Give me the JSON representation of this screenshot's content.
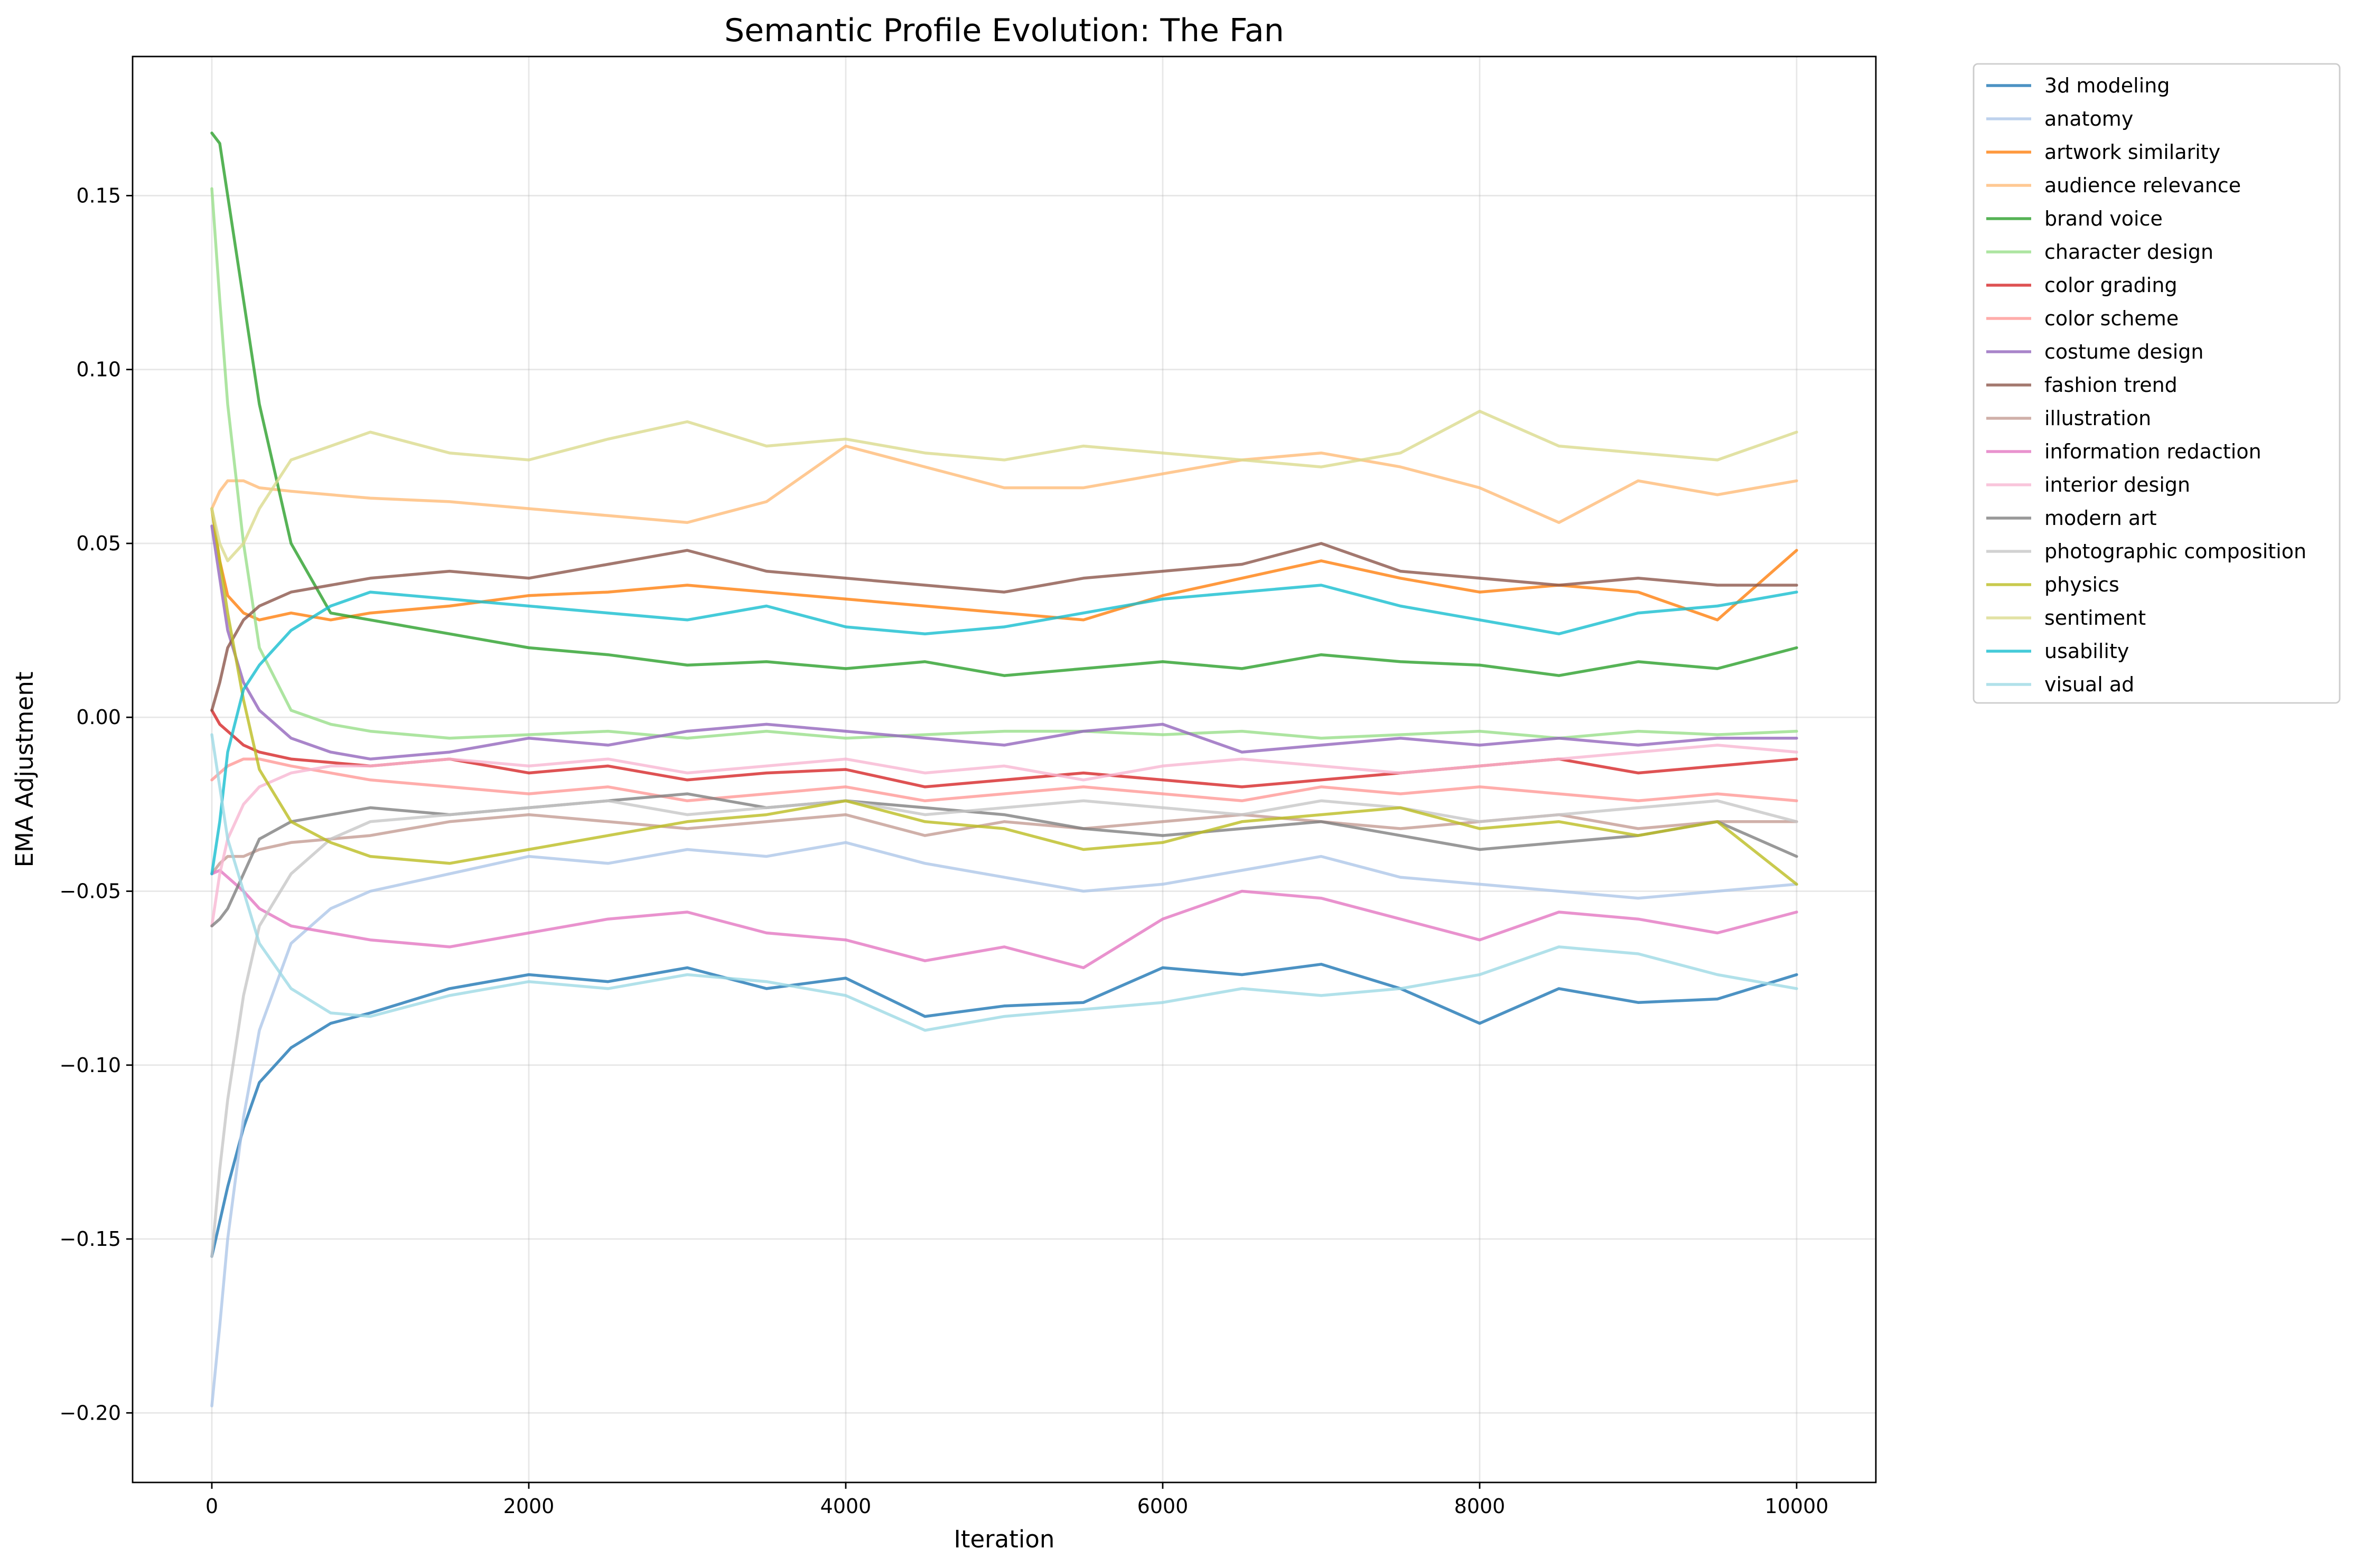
{
  "chart_data": {
    "type": "line",
    "title": "Semantic Profile Evolution: The Fan",
    "xlabel": "Iteration",
    "ylabel": "EMA Adjustment",
    "xlim": [
      -500,
      10500
    ],
    "ylim": [
      -0.22,
      0.19
    ],
    "xticks": [
      0,
      2000,
      4000,
      6000,
      8000,
      10000
    ],
    "xtick_labels": [
      "0",
      "2000",
      "4000",
      "6000",
      "8000",
      "10000"
    ],
    "yticks": [
      -0.2,
      -0.15,
      -0.1,
      -0.05,
      0.0,
      0.05,
      0.1,
      0.15
    ],
    "ytick_labels": [
      "−0.20",
      "−0.15",
      "−0.10",
      "−0.05",
      "0.00",
      "0.05",
      "0.10",
      "0.15"
    ],
    "grid": true,
    "legend_position": "outside-right-top",
    "x": [
      0,
      50,
      100,
      200,
      300,
      500,
      750,
      1000,
      1500,
      2000,
      2500,
      3000,
      3500,
      4000,
      4500,
      5000,
      5500,
      6000,
      6500,
      7000,
      7500,
      8000,
      8500,
      9000,
      9500,
      10000
    ],
    "series": [
      {
        "name": "3d modeling",
        "color": "#1f77b4",
        "values": [
          -0.155,
          -0.145,
          -0.135,
          -0.118,
          -0.105,
          -0.095,
          -0.088,
          -0.085,
          -0.078,
          -0.074,
          -0.076,
          -0.072,
          -0.078,
          -0.075,
          -0.086,
          -0.083,
          -0.082,
          -0.072,
          -0.074,
          -0.071,
          -0.078,
          -0.088,
          -0.078,
          -0.082,
          -0.081,
          -0.074
        ]
      },
      {
        "name": "anatomy",
        "color": "#aec7e8",
        "values": [
          -0.198,
          -0.175,
          -0.15,
          -0.115,
          -0.09,
          -0.065,
          -0.055,
          -0.05,
          -0.045,
          -0.04,
          -0.042,
          -0.038,
          -0.04,
          -0.036,
          -0.042,
          -0.046,
          -0.05,
          -0.048,
          -0.044,
          -0.04,
          -0.046,
          -0.048,
          -0.05,
          -0.052,
          -0.05,
          -0.048
        ]
      },
      {
        "name": "artwork similarity",
        "color": "#ff7f0e",
        "values": [
          0.06,
          0.045,
          0.035,
          0.03,
          0.028,
          0.03,
          0.028,
          0.03,
          0.032,
          0.035,
          0.036,
          0.038,
          0.036,
          0.034,
          0.032,
          0.03,
          0.028,
          0.035,
          0.04,
          0.045,
          0.04,
          0.036,
          0.038,
          0.036,
          0.028,
          0.048
        ]
      },
      {
        "name": "audience relevance",
        "color": "#ffbb78",
        "values": [
          0.06,
          0.065,
          0.068,
          0.068,
          0.066,
          0.065,
          0.064,
          0.063,
          0.062,
          0.06,
          0.058,
          0.056,
          0.062,
          0.078,
          0.072,
          0.066,
          0.066,
          0.07,
          0.074,
          0.076,
          0.072,
          0.066,
          0.056,
          0.068,
          0.064,
          0.068
        ]
      },
      {
        "name": "brand voice",
        "color": "#2ca02c",
        "values": [
          0.168,
          0.165,
          0.15,
          0.12,
          0.09,
          0.05,
          0.03,
          0.028,
          0.024,
          0.02,
          0.018,
          0.015,
          0.016,
          0.014,
          0.016,
          0.012,
          0.014,
          0.016,
          0.014,
          0.018,
          0.016,
          0.015,
          0.012,
          0.016,
          0.014,
          0.02
        ]
      },
      {
        "name": "character design",
        "color": "#98df8a",
        "values": [
          0.152,
          0.12,
          0.09,
          0.05,
          0.02,
          0.002,
          -0.002,
          -0.004,
          -0.006,
          -0.005,
          -0.004,
          -0.006,
          -0.004,
          -0.006,
          -0.005,
          -0.004,
          -0.004,
          -0.005,
          -0.004,
          -0.006,
          -0.005,
          -0.004,
          -0.006,
          -0.004,
          -0.005,
          -0.004
        ]
      },
      {
        "name": "color grading",
        "color": "#d62728",
        "values": [
          0.002,
          -0.002,
          -0.004,
          -0.008,
          -0.01,
          -0.012,
          -0.013,
          -0.014,
          -0.012,
          -0.016,
          -0.014,
          -0.018,
          -0.016,
          -0.015,
          -0.02,
          -0.018,
          -0.016,
          -0.018,
          -0.02,
          -0.018,
          -0.016,
          -0.014,
          -0.012,
          -0.016,
          -0.014,
          -0.012
        ]
      },
      {
        "name": "color scheme",
        "color": "#ff9896",
        "values": [
          -0.018,
          -0.016,
          -0.014,
          -0.012,
          -0.012,
          -0.014,
          -0.016,
          -0.018,
          -0.02,
          -0.022,
          -0.02,
          -0.024,
          -0.022,
          -0.02,
          -0.024,
          -0.022,
          -0.02,
          -0.022,
          -0.024,
          -0.02,
          -0.022,
          -0.02,
          -0.022,
          -0.024,
          -0.022,
          -0.024
        ]
      },
      {
        "name": "costume design",
        "color": "#9467bd",
        "values": [
          0.055,
          0.04,
          0.025,
          0.01,
          0.002,
          -0.006,
          -0.01,
          -0.012,
          -0.01,
          -0.006,
          -0.008,
          -0.004,
          -0.002,
          -0.004,
          -0.006,
          -0.008,
          -0.004,
          -0.002,
          -0.01,
          -0.008,
          -0.006,
          -0.008,
          -0.006,
          -0.008,
          -0.006,
          -0.006
        ]
      },
      {
        "name": "fashion trend",
        "color": "#8c564b",
        "values": [
          0.002,
          0.01,
          0.02,
          0.028,
          0.032,
          0.036,
          0.038,
          0.04,
          0.042,
          0.04,
          0.044,
          0.048,
          0.042,
          0.04,
          0.038,
          0.036,
          0.04,
          0.042,
          0.044,
          0.05,
          0.042,
          0.04,
          0.038,
          0.04,
          0.038,
          0.038
        ]
      },
      {
        "name": "illustration",
        "color": "#c49c94",
        "values": [
          -0.045,
          -0.042,
          -0.04,
          -0.04,
          -0.038,
          -0.036,
          -0.035,
          -0.034,
          -0.03,
          -0.028,
          -0.03,
          -0.032,
          -0.03,
          -0.028,
          -0.034,
          -0.03,
          -0.032,
          -0.03,
          -0.028,
          -0.03,
          -0.032,
          -0.03,
          -0.028,
          -0.032,
          -0.03,
          -0.03
        ]
      },
      {
        "name": "information redaction",
        "color": "#e377c2",
        "values": [
          -0.045,
          -0.044,
          -0.046,
          -0.05,
          -0.055,
          -0.06,
          -0.062,
          -0.064,
          -0.066,
          -0.062,
          -0.058,
          -0.056,
          -0.062,
          -0.064,
          -0.07,
          -0.066,
          -0.072,
          -0.058,
          -0.05,
          -0.052,
          -0.058,
          -0.064,
          -0.056,
          -0.058,
          -0.062,
          -0.056
        ]
      },
      {
        "name": "interior design",
        "color": "#f7b6d2",
        "values": [
          -0.06,
          -0.045,
          -0.035,
          -0.025,
          -0.02,
          -0.016,
          -0.014,
          -0.014,
          -0.012,
          -0.014,
          -0.012,
          -0.016,
          -0.014,
          -0.012,
          -0.016,
          -0.014,
          -0.018,
          -0.014,
          -0.012,
          -0.014,
          -0.016,
          -0.014,
          -0.012,
          -0.01,
          -0.008,
          -0.01
        ]
      },
      {
        "name": "modern art",
        "color": "#7f7f7f",
        "values": [
          -0.06,
          -0.058,
          -0.055,
          -0.045,
          -0.035,
          -0.03,
          -0.028,
          -0.026,
          -0.028,
          -0.026,
          -0.024,
          -0.022,
          -0.026,
          -0.024,
          -0.026,
          -0.028,
          -0.032,
          -0.034,
          -0.032,
          -0.03,
          -0.034,
          -0.038,
          -0.036,
          -0.034,
          -0.03,
          -0.04
        ]
      },
      {
        "name": "photographic composition",
        "color": "#c7c7c7",
        "values": [
          -0.155,
          -0.13,
          -0.11,
          -0.08,
          -0.06,
          -0.045,
          -0.035,
          -0.03,
          -0.028,
          -0.026,
          -0.024,
          -0.028,
          -0.026,
          -0.024,
          -0.028,
          -0.026,
          -0.024,
          -0.026,
          -0.028,
          -0.024,
          -0.026,
          -0.03,
          -0.028,
          -0.026,
          -0.024,
          -0.03
        ]
      },
      {
        "name": "physics",
        "color": "#bcbd22",
        "values": [
          0.06,
          0.045,
          0.03,
          0.005,
          -0.015,
          -0.03,
          -0.036,
          -0.04,
          -0.042,
          -0.038,
          -0.034,
          -0.03,
          -0.028,
          -0.024,
          -0.03,
          -0.032,
          -0.038,
          -0.036,
          -0.03,
          -0.028,
          -0.026,
          -0.032,
          -0.03,
          -0.034,
          -0.03,
          -0.048
        ]
      },
      {
        "name": "sentiment",
        "color": "#dbdb8d",
        "values": [
          0.06,
          0.05,
          0.045,
          0.05,
          0.06,
          0.074,
          0.078,
          0.082,
          0.076,
          0.074,
          0.08,
          0.085,
          0.078,
          0.08,
          0.076,
          0.074,
          0.078,
          0.076,
          0.074,
          0.072,
          0.076,
          0.088,
          0.078,
          0.076,
          0.074,
          0.082
        ]
      },
      {
        "name": "usability",
        "color": "#17becf",
        "values": [
          -0.045,
          -0.03,
          -0.01,
          0.008,
          0.015,
          0.025,
          0.032,
          0.036,
          0.034,
          0.032,
          0.03,
          0.028,
          0.032,
          0.026,
          0.024,
          0.026,
          0.03,
          0.034,
          0.036,
          0.038,
          0.032,
          0.028,
          0.024,
          0.03,
          0.032,
          0.036
        ]
      },
      {
        "name": "visual ad",
        "color": "#9edae5",
        "values": [
          -0.005,
          -0.02,
          -0.035,
          -0.05,
          -0.065,
          -0.078,
          -0.085,
          -0.086,
          -0.08,
          -0.076,
          -0.078,
          -0.074,
          -0.076,
          -0.08,
          -0.09,
          -0.086,
          -0.084,
          -0.082,
          -0.078,
          -0.08,
          -0.078,
          -0.074,
          -0.066,
          -0.068,
          -0.074,
          -0.078
        ]
      }
    ]
  }
}
